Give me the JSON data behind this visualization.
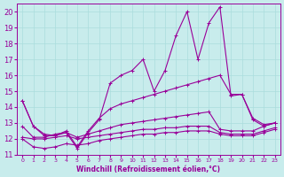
{
  "xlabel": "Windchill (Refroidissement éolien,°C)",
  "background_color": "#c8ecec",
  "grid_color": "#aadddd",
  "line_color": "#990099",
  "xlim": [
    -0.5,
    23.5
  ],
  "ylim": [
    11,
    20.5
  ],
  "xticks": [
    0,
    1,
    2,
    3,
    4,
    5,
    6,
    7,
    8,
    9,
    10,
    11,
    12,
    13,
    14,
    15,
    16,
    17,
    18,
    19,
    20,
    21,
    22,
    23
  ],
  "yticks": [
    11,
    12,
    13,
    14,
    15,
    16,
    17,
    18,
    19,
    20
  ],
  "series1_x": [
    0,
    1,
    2,
    3,
    4,
    5,
    6,
    7,
    8,
    9,
    10,
    11,
    12,
    13,
    14,
    15,
    16,
    17,
    18,
    19,
    20,
    21,
    22,
    23
  ],
  "series1_y": [
    14.4,
    12.8,
    12.2,
    12.2,
    12.4,
    11.4,
    12.4,
    13.2,
    15.5,
    16.0,
    16.3,
    17.0,
    15.0,
    16.3,
    18.5,
    20.0,
    17.0,
    19.3,
    20.3,
    14.7,
    14.8,
    13.2,
    12.8,
    13.0
  ],
  "series2_x": [
    0,
    1,
    2,
    3,
    4,
    5,
    6,
    7,
    8,
    9,
    10,
    11,
    12,
    13,
    14,
    15,
    16,
    17,
    18,
    19,
    20,
    21,
    22,
    23
  ],
  "series2_y": [
    14.4,
    12.8,
    12.3,
    12.2,
    12.5,
    11.5,
    12.5,
    13.3,
    13.9,
    14.2,
    14.4,
    14.6,
    14.8,
    15.0,
    15.2,
    15.4,
    15.6,
    15.8,
    16.0,
    14.8,
    14.8,
    13.3,
    12.9,
    13.0
  ],
  "series3_x": [
    0,
    1,
    2,
    3,
    4,
    5,
    6,
    7,
    8,
    9,
    10,
    11,
    12,
    13,
    14,
    15,
    16,
    17,
    18,
    19,
    20,
    21,
    22,
    23
  ],
  "series3_y": [
    12.8,
    12.1,
    12.1,
    12.3,
    12.4,
    12.1,
    12.3,
    12.5,
    12.7,
    12.9,
    13.0,
    13.1,
    13.2,
    13.3,
    13.4,
    13.5,
    13.6,
    13.7,
    12.6,
    12.5,
    12.5,
    12.5,
    12.8,
    13.0
  ],
  "series4_x": [
    0,
    1,
    2,
    3,
    4,
    5,
    6,
    7,
    8,
    9,
    10,
    11,
    12,
    13,
    14,
    15,
    16,
    17,
    18,
    19,
    20,
    21,
    22,
    23
  ],
  "series4_y": [
    12.1,
    12.0,
    12.0,
    12.1,
    12.2,
    12.0,
    12.1,
    12.2,
    12.3,
    12.4,
    12.5,
    12.6,
    12.6,
    12.7,
    12.7,
    12.8,
    12.8,
    12.8,
    12.4,
    12.3,
    12.3,
    12.3,
    12.5,
    12.7
  ],
  "series5_x": [
    0,
    1,
    2,
    3,
    4,
    5,
    6,
    7,
    8,
    9,
    10,
    11,
    12,
    13,
    14,
    15,
    16,
    17,
    18,
    19,
    20,
    21,
    22,
    23
  ],
  "series5_y": [
    12.0,
    11.5,
    11.4,
    11.5,
    11.7,
    11.6,
    11.7,
    11.9,
    12.0,
    12.1,
    12.2,
    12.3,
    12.3,
    12.4,
    12.4,
    12.5,
    12.5,
    12.5,
    12.3,
    12.2,
    12.2,
    12.2,
    12.4,
    12.6
  ]
}
